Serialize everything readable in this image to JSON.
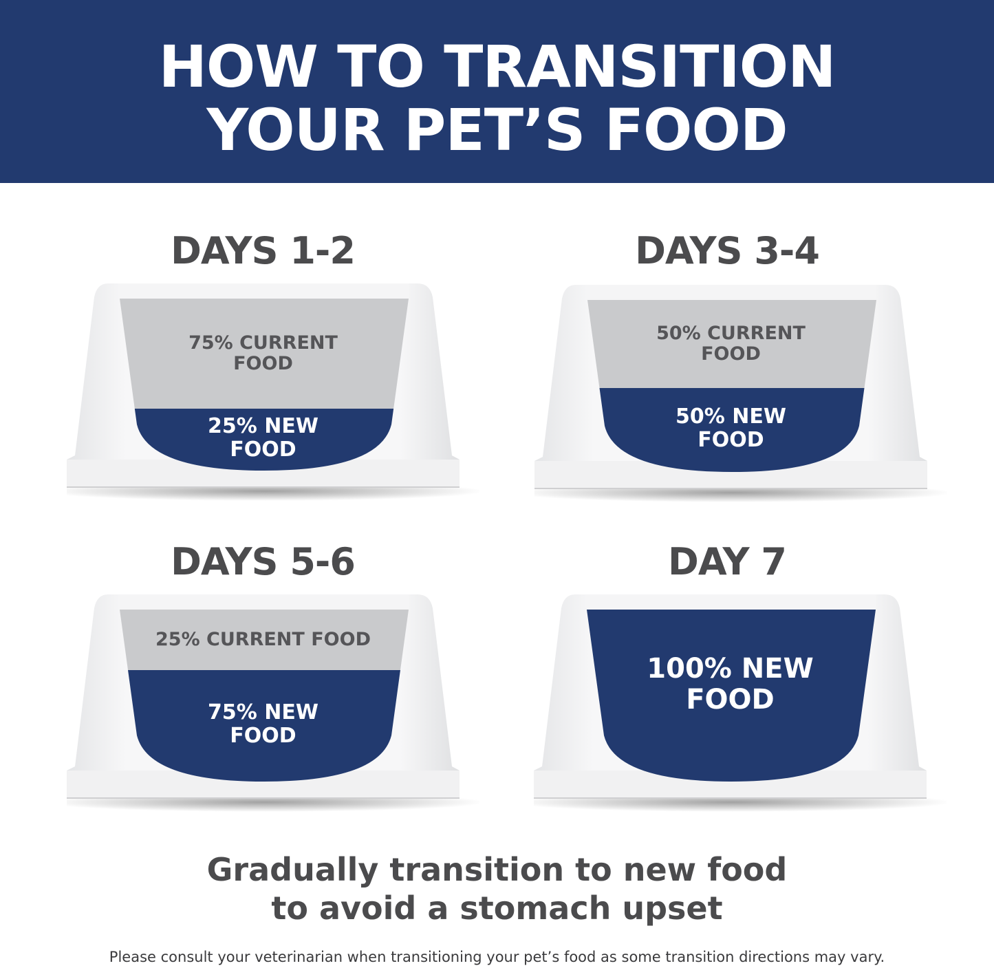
{
  "header": {
    "title_line1": "HOW TO TRANSITION",
    "title_line2": "YOUR PET’S FOOD"
  },
  "colors": {
    "navy": "#223a6f",
    "current_food_gray": "#c9cacc",
    "text_gray": "#4b4b4d"
  },
  "stages": [
    {
      "title": "DAYS 1-2",
      "current_label": "75% CURRENT\nFOOD",
      "new_label": "25% NEW\nFOOD",
      "current_pct": 75,
      "new_pct": 25
    },
    {
      "title": "DAYS 3-4",
      "current_label": "50% CURRENT\nFOOD",
      "new_label": "50% NEW\nFOOD",
      "current_pct": 50,
      "new_pct": 50
    },
    {
      "title": "DAYS 5-6",
      "current_label": "25% CURRENT FOOD",
      "new_label": "75% NEW\nFOOD",
      "current_pct": 25,
      "new_pct": 75
    },
    {
      "title": "DAY 7",
      "current_label": "",
      "new_label": "100% NEW\nFOOD",
      "current_pct": 0,
      "new_pct": 100
    }
  ],
  "tagline": {
    "line1": "Gradually transition to new food",
    "line2": "to avoid a stomach upset"
  },
  "disclaimer": "Please consult your veterinarian when transitioning your pet’s food as some transition directions may vary."
}
